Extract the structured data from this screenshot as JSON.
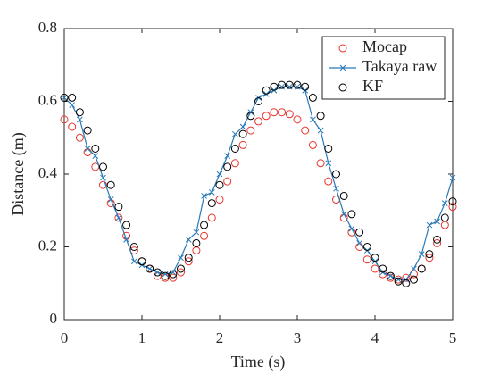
{
  "chart_data": {
    "type": "line",
    "xlabel": "Time (s)",
    "ylabel": "Distance (m)",
    "xlim": [
      0,
      5
    ],
    "ylim": [
      0,
      0.8
    ],
    "xticks": [
      0,
      1,
      2,
      3,
      4,
      5
    ],
    "yticks": [
      0,
      0.2,
      0.4,
      0.6,
      0.8
    ],
    "grid": false,
    "legend": "upper right",
    "x": [
      0,
      0.1,
      0.2,
      0.3,
      0.4,
      0.5,
      0.6,
      0.7,
      0.8,
      0.9,
      1,
      1.1,
      1.2,
      1.3,
      1.4,
      1.5,
      1.6,
      1.7,
      1.8,
      1.9,
      2,
      2.1,
      2.2,
      2.3,
      2.4,
      2.5,
      2.6,
      2.7,
      2.8,
      2.9,
      3,
      3.1,
      3.2,
      3.3,
      3.4,
      3.5,
      3.6,
      3.7,
      3.8,
      3.9,
      4,
      4.1,
      4.2,
      4.3,
      4.4,
      4.5,
      4.6,
      4.7,
      4.8,
      4.9,
      5
    ],
    "series": [
      {
        "name": "Mocap",
        "color": "#e8332a",
        "marker": "circle",
        "values": [
          0.55,
          0.53,
          0.5,
          0.46,
          0.42,
          0.37,
          0.32,
          0.28,
          0.23,
          0.19,
          0.16,
          0.14,
          0.12,
          0.115,
          0.115,
          0.13,
          0.16,
          0.19,
          0.23,
          0.28,
          0.33,
          0.38,
          0.43,
          0.48,
          0.52,
          0.545,
          0.56,
          0.57,
          0.57,
          0.565,
          0.55,
          0.52,
          0.48,
          0.43,
          0.38,
          0.33,
          0.28,
          0.24,
          0.2,
          0.165,
          0.14,
          0.125,
          0.115,
          0.11,
          0.115,
          0.125,
          0.14,
          0.17,
          0.21,
          0.26,
          0.31
        ]
      },
      {
        "name": "Takaya raw",
        "color": "#2a7ab8",
        "marker": "x",
        "values": [
          0.61,
          0.59,
          0.55,
          0.47,
          0.45,
          0.39,
          0.33,
          0.28,
          0.22,
          0.16,
          0.15,
          0.14,
          0.13,
          0.125,
          0.13,
          0.17,
          0.22,
          0.24,
          0.34,
          0.35,
          0.4,
          0.45,
          0.51,
          0.53,
          0.57,
          0.61,
          0.62,
          0.63,
          0.64,
          0.64,
          0.64,
          0.63,
          0.55,
          0.52,
          0.43,
          0.36,
          0.29,
          0.25,
          0.21,
          0.19,
          0.16,
          0.13,
          0.12,
          0.11,
          0.11,
          0.14,
          0.18,
          0.26,
          0.27,
          0.32,
          0.39
        ]
      },
      {
        "name": "KF",
        "color": "#000000",
        "marker": "circle",
        "values": [
          0.61,
          0.61,
          0.57,
          0.52,
          0.47,
          0.42,
          0.37,
          0.31,
          0.26,
          0.2,
          0.16,
          0.14,
          0.13,
          0.12,
          0.125,
          0.14,
          0.17,
          0.21,
          0.26,
          0.32,
          0.37,
          0.42,
          0.47,
          0.51,
          0.56,
          0.6,
          0.63,
          0.64,
          0.645,
          0.645,
          0.645,
          0.64,
          0.61,
          0.56,
          0.47,
          0.4,
          0.34,
          0.29,
          0.24,
          0.2,
          0.17,
          0.14,
          0.12,
          0.105,
          0.1,
          0.11,
          0.14,
          0.18,
          0.22,
          0.28,
          0.325
        ]
      }
    ]
  }
}
